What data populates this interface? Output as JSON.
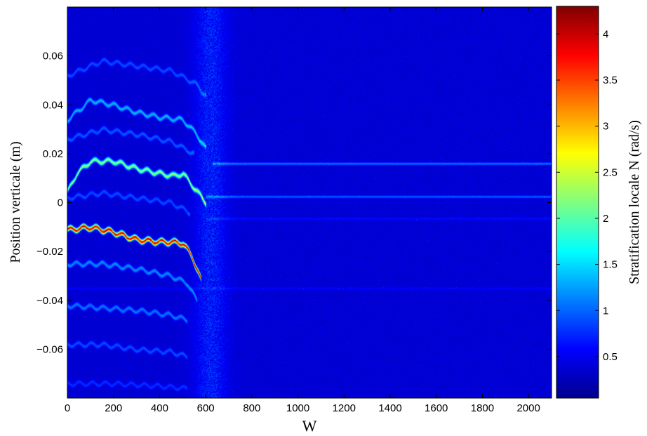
{
  "chart_data": {
    "type": "heatmap",
    "title": "",
    "xlabel": "W",
    "ylabel": "Position verticale (m)",
    "xlim": [
      0,
      2100
    ],
    "ylim": [
      -0.08,
      0.08
    ],
    "x_ticks": [
      0,
      200,
      400,
      600,
      800,
      1000,
      1200,
      1400,
      1600,
      1800,
      2000
    ],
    "x_tick_labels": [
      "0",
      "200",
      "400",
      "600",
      "800",
      "1000",
      "1200",
      "1400",
      "1600",
      "1800",
      "2000"
    ],
    "y_ticks": [
      0.06,
      0.04,
      0.02,
      0,
      -0.02,
      -0.04,
      -0.06
    ],
    "y_tick_labels": [
      "0.06",
      "0.04",
      "0.02",
      "0",
      "−0.02",
      "−0.04",
      "−0.06"
    ],
    "colorbar": {
      "label": "Stratification locale N (rad/s)",
      "range": [
        0.05,
        4.3
      ],
      "ticks": [
        4,
        3.5,
        3,
        2.5,
        2,
        1.5,
        1,
        0.5
      ],
      "tick_labels": [
        "4",
        "3.5",
        "3",
        "2.5",
        "2",
        "1.5",
        "1",
        "0.5"
      ],
      "colormap": "jet"
    },
    "background_level": 0.3,
    "bands": [
      {
        "path": [
          [
            0,
            0.0045
          ],
          [
            40,
            0.012
          ],
          [
            100,
            0.017
          ],
          [
            200,
            0.017
          ],
          [
            300,
            0.014
          ],
          [
            400,
            0.012
          ],
          [
            460,
            0.011
          ],
          [
            500,
            0.012
          ],
          [
            550,
            0.006
          ],
          [
            600,
            0.0
          ]
        ],
        "peak": 2.4
      },
      {
        "path": [
          [
            0,
            -0.011
          ],
          [
            100,
            -0.01
          ],
          [
            200,
            -0.012
          ],
          [
            300,
            -0.015
          ],
          [
            400,
            -0.016
          ],
          [
            450,
            -0.016
          ],
          [
            500,
            -0.0165
          ],
          [
            540,
            -0.022
          ],
          [
            580,
            -0.032
          ]
        ],
        "peak": 4.3
      },
      {
        "path": [
          [
            0,
            0.034
          ],
          [
            100,
            0.042
          ],
          [
            200,
            0.04
          ],
          [
            300,
            0.037
          ],
          [
            400,
            0.035
          ],
          [
            500,
            0.034
          ],
          [
            560,
            0.028
          ],
          [
            600,
            0.022
          ]
        ],
        "peak": 1.4
      },
      {
        "path": [
          [
            0,
            0.052
          ],
          [
            150,
            0.058
          ],
          [
            300,
            0.056
          ],
          [
            450,
            0.054
          ],
          [
            550,
            0.049
          ],
          [
            600,
            0.044
          ]
        ],
        "peak": 0.9
      },
      {
        "path": [
          [
            0,
            0.026
          ],
          [
            150,
            0.03
          ],
          [
            300,
            0.028
          ],
          [
            450,
            0.025
          ],
          [
            550,
            0.02
          ]
        ],
        "peak": 0.95
      },
      {
        "path": [
          [
            0,
            0.002
          ],
          [
            150,
            0.004
          ],
          [
            300,
            0.002
          ],
          [
            450,
            0.0
          ],
          [
            530,
            -0.004
          ]
        ],
        "peak": 0.9
      },
      {
        "path": [
          [
            0,
            -0.025
          ],
          [
            150,
            -0.025
          ],
          [
            300,
            -0.027
          ],
          [
            450,
            -0.03
          ],
          [
            520,
            -0.033
          ],
          [
            560,
            -0.04
          ]
        ],
        "peak": 1.2
      },
      {
        "path": [
          [
            0,
            -0.042
          ],
          [
            150,
            -0.043
          ],
          [
            300,
            -0.044
          ],
          [
            450,
            -0.046
          ],
          [
            520,
            -0.048
          ]
        ],
        "peak": 1.1
      },
      {
        "path": [
          [
            0,
            -0.058
          ],
          [
            150,
            -0.058
          ],
          [
            300,
            -0.06
          ],
          [
            450,
            -0.061
          ],
          [
            520,
            -0.063
          ]
        ],
        "peak": 0.9
      },
      {
        "path": [
          [
            0,
            -0.074
          ],
          [
            200,
            -0.074
          ],
          [
            400,
            -0.075
          ],
          [
            520,
            -0.076
          ]
        ],
        "peak": 0.75
      }
    ],
    "horizontal_lines": [
      {
        "y": 0.016,
        "x_from": 630,
        "level": 1.0
      },
      {
        "y": 0.0025,
        "x_from": 600,
        "level": 0.9
      },
      {
        "y": -0.0065,
        "x_from": 600,
        "level": 0.55
      },
      {
        "y": -0.035,
        "x_from": 0,
        "level": 0.5
      }
    ]
  }
}
